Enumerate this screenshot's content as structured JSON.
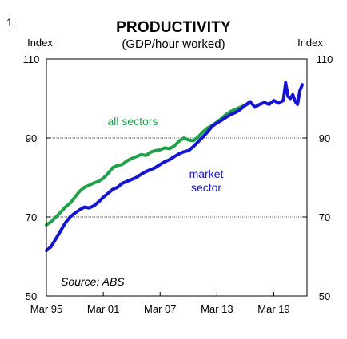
{
  "figure_number": "1.",
  "chart_data": {
    "type": "line",
    "title": "PRODUCTIVITY",
    "subtitle": "(GDP/hour worked)",
    "ylabel_left": "Index",
    "ylabel_right": "Index",
    "ylim": [
      50,
      110
    ],
    "yticks": [
      50,
      70,
      90,
      110
    ],
    "xlim": [
      1995.0,
      2022.5
    ],
    "xticks": [
      {
        "value": 1995.0,
        "label": "Mar 95"
      },
      {
        "value": 2001.0,
        "label": "Mar 01"
      },
      {
        "value": 2007.0,
        "label": "Mar 07"
      },
      {
        "value": 2013.0,
        "label": "Mar 13"
      },
      {
        "value": 2019.0,
        "label": "Mar 19"
      }
    ],
    "grid": {
      "horizontal_dotted": [
        70,
        90
      ]
    },
    "source": "Source: ABS",
    "annotations": [
      {
        "text": "all sectors",
        "series": "all sectors"
      },
      {
        "text": "market",
        "series": "market sector"
      },
      {
        "text": "sector",
        "series": "market sector"
      }
    ],
    "series": [
      {
        "name": "all sectors",
        "color": "#21a14a",
        "points": [
          [
            1995.0,
            68.0
          ],
          [
            1995.5,
            68.8
          ],
          [
            1996.0,
            70.0
          ],
          [
            1996.5,
            71.2
          ],
          [
            1997.0,
            72.5
          ],
          [
            1997.5,
            73.5
          ],
          [
            1998.0,
            75.0
          ],
          [
            1998.5,
            76.5
          ],
          [
            1999.0,
            77.5
          ],
          [
            1999.5,
            78.0
          ],
          [
            2000.0,
            78.6
          ],
          [
            2000.5,
            79.0
          ],
          [
            2001.0,
            79.8
          ],
          [
            2001.5,
            81.0
          ],
          [
            2002.0,
            82.5
          ],
          [
            2002.5,
            83.0
          ],
          [
            2003.0,
            83.3
          ],
          [
            2003.5,
            84.2
          ],
          [
            2004.0,
            84.8
          ],
          [
            2004.5,
            85.3
          ],
          [
            2005.0,
            85.8
          ],
          [
            2005.5,
            85.6
          ],
          [
            2006.0,
            86.4
          ],
          [
            2006.5,
            86.8
          ],
          [
            2007.0,
            87.0
          ],
          [
            2007.5,
            87.5
          ],
          [
            2008.0,
            87.3
          ],
          [
            2008.5,
            88.0
          ],
          [
            2009.0,
            89.2
          ],
          [
            2009.5,
            90.0
          ],
          [
            2010.0,
            89.5
          ],
          [
            2010.5,
            89.3
          ],
          [
            2011.0,
            90.2
          ],
          [
            2011.5,
            91.5
          ],
          [
            2012.0,
            92.5
          ],
          [
            2012.5,
            93.2
          ],
          [
            2013.0,
            94.0
          ],
          [
            2013.5,
            95.0
          ],
          [
            2014.0,
            96.0
          ],
          [
            2014.5,
            96.8
          ],
          [
            2015.0,
            97.3
          ],
          [
            2015.5,
            97.8
          ],
          [
            2016.0,
            98.3
          ],
          [
            2016.5,
            98.8
          ]
        ]
      },
      {
        "name": "market sector",
        "color": "#1414d2",
        "points": [
          [
            1995.0,
            61.5
          ],
          [
            1995.5,
            62.5
          ],
          [
            1996.0,
            64.5
          ],
          [
            1996.5,
            66.5
          ],
          [
            1997.0,
            68.5
          ],
          [
            1997.5,
            70.0
          ],
          [
            1998.0,
            71.0
          ],
          [
            1998.5,
            71.8
          ],
          [
            1999.0,
            72.5
          ],
          [
            1999.5,
            72.3
          ],
          [
            2000.0,
            72.8
          ],
          [
            2000.5,
            73.8
          ],
          [
            2001.0,
            75.0
          ],
          [
            2001.5,
            76.0
          ],
          [
            2002.0,
            77.0
          ],
          [
            2002.5,
            77.5
          ],
          [
            2003.0,
            78.5
          ],
          [
            2003.5,
            79.0
          ],
          [
            2004.0,
            79.5
          ],
          [
            2004.5,
            80.0
          ],
          [
            2005.0,
            80.8
          ],
          [
            2005.5,
            81.5
          ],
          [
            2006.0,
            82.0
          ],
          [
            2006.5,
            82.5
          ],
          [
            2007.0,
            83.3
          ],
          [
            2007.5,
            84.0
          ],
          [
            2008.0,
            84.5
          ],
          [
            2008.5,
            85.3
          ],
          [
            2009.0,
            86.0
          ],
          [
            2009.5,
            86.5
          ],
          [
            2010.0,
            86.8
          ],
          [
            2010.5,
            87.8
          ],
          [
            2011.0,
            89.0
          ],
          [
            2011.5,
            90.2
          ],
          [
            2012.0,
            91.5
          ],
          [
            2012.5,
            93.0
          ],
          [
            2013.0,
            93.8
          ],
          [
            2013.5,
            94.5
          ],
          [
            2014.0,
            95.3
          ],
          [
            2014.5,
            96.0
          ],
          [
            2015.0,
            96.5
          ],
          [
            2015.5,
            97.3
          ],
          [
            2016.0,
            98.3
          ],
          [
            2016.5,
            99.2
          ],
          [
            2017.0,
            97.8
          ],
          [
            2017.5,
            98.5
          ],
          [
            2018.0,
            99.0
          ],
          [
            2018.5,
            98.5
          ],
          [
            2019.0,
            99.5
          ],
          [
            2019.5,
            98.8
          ],
          [
            2020.0,
            99.5
          ],
          [
            2020.25,
            104.0
          ],
          [
            2020.5,
            100.5
          ],
          [
            2020.75,
            100.0
          ],
          [
            2021.0,
            101.0
          ],
          [
            2021.25,
            99.3
          ],
          [
            2021.5,
            98.5
          ],
          [
            2021.75,
            102.0
          ],
          [
            2022.0,
            103.5
          ]
        ]
      }
    ]
  }
}
